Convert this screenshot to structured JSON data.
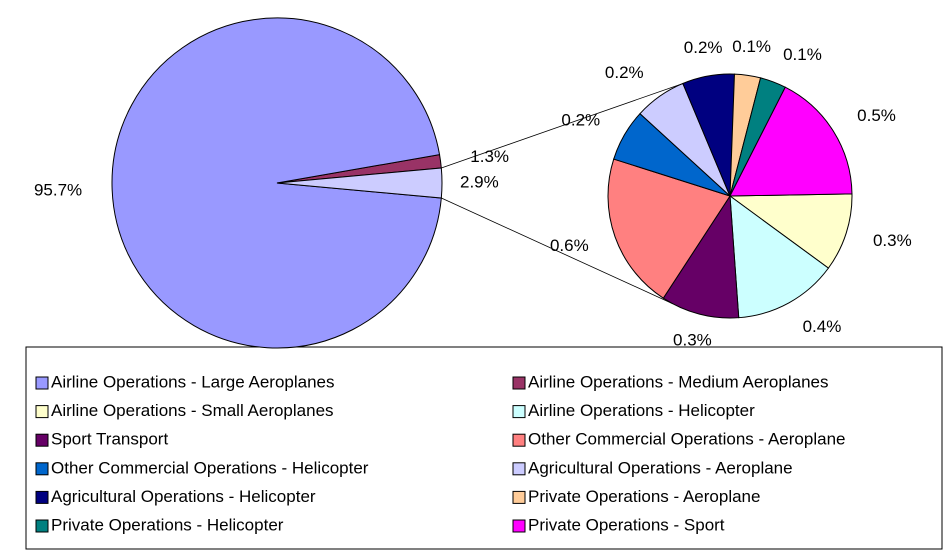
{
  "chart_data": {
    "type": "pie-of-pie",
    "categories": [
      "Airline Operations - Large Aeroplanes",
      "Airline Operations - Medium Aeroplanes",
      "Airline Operations - Small Aeroplanes",
      "Airline Operations - Helicopter",
      "Sport Transport",
      "Other Commercial Operations - Aeroplane",
      "Other Commercial Operations - Helicopter",
      "Agricultural Operations - Aeroplane",
      "Agricultural Operations - Helicopter",
      "Private Operations - Aeroplane",
      "Private Operations - Helicopter",
      "Private Operations - Sport"
    ],
    "values": [
      95.7,
      1.3,
      0.3,
      0.4,
      0.3,
      0.6,
      0.2,
      0.2,
      0.2,
      0.1,
      0.1,
      0.5
    ],
    "value_labels": [
      "95.7%",
      "1.3%",
      "0.3%",
      "0.4%",
      "0.3%",
      "0.6%",
      "0.2%",
      "0.2%",
      "0.2%",
      "0.1%",
      "0.1%",
      "0.5%"
    ],
    "colors": [
      "#9999ff",
      "#993366",
      "#ffffcc",
      "#ccffff",
      "#660066",
      "#ff8080",
      "#0066cc",
      "#ccccff",
      "#000080",
      "#ffcc99",
      "#008080",
      "#ff00ff"
    ],
    "other": {
      "value": 2.9,
      "value_label": "2.9%",
      "color": "#ccccff"
    }
  }
}
